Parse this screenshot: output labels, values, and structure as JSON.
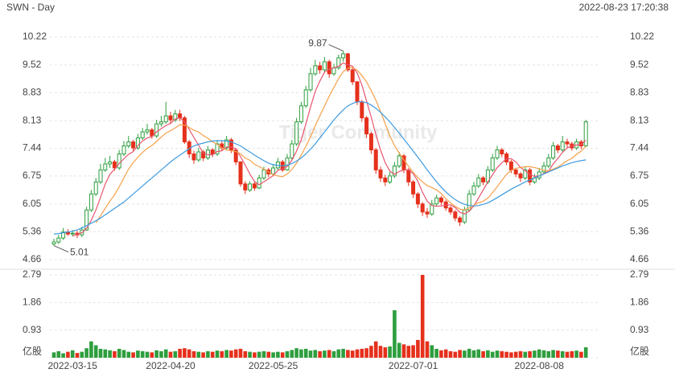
{
  "chart_data": {
    "type": "candlestick",
    "title": "SWN - Day",
    "subtitle": "2022-08-23 17:20:38",
    "watermark": "Tiger Community",
    "up_color": "#2e9e3e",
    "down_color": "#e5301c",
    "grid": true,
    "categories": [
      null,
      null,
      null,
      null,
      "2022-03-15",
      null,
      null,
      null,
      null,
      null,
      null,
      null,
      null,
      null,
      null,
      null,
      null,
      null,
      null,
      null,
      null,
      null,
      null,
      null,
      null,
      "2022-04-20",
      null,
      null,
      null,
      null,
      null,
      null,
      null,
      null,
      null,
      null,
      null,
      null,
      null,
      null,
      null,
      null,
      null,
      null,
      null,
      null,
      null,
      "2022-05-25",
      null,
      null,
      null,
      null,
      null,
      null,
      null,
      null,
      null,
      null,
      null,
      null,
      null,
      null,
      null,
      null,
      null,
      null,
      null,
      null,
      null,
      null,
      null,
      null,
      null,
      null,
      null,
      null,
      null,
      "2022-07-01",
      null,
      null,
      null,
      null,
      null,
      null,
      null,
      null,
      null,
      null,
      null,
      null,
      null,
      null,
      null,
      null,
      null,
      null,
      null,
      null,
      null,
      null,
      null,
      null,
      null,
      null,
      "2022-08-08",
      null,
      null,
      null,
      null,
      null,
      null,
      null,
      null,
      null,
      null
    ],
    "open": [
      5.05,
      5.1,
      5.2,
      5.35,
      5.3,
      5.32,
      5.28,
      5.4,
      5.9,
      6.3,
      6.6,
      6.9,
      7.05,
      7.1,
      6.95,
      7.3,
      7.5,
      7.6,
      7.45,
      7.7,
      7.85,
      7.9,
      7.75,
      8.05,
      8.1,
      8.25,
      8.15,
      8.3,
      8.2,
      7.6,
      7.3,
      7.15,
      7.35,
      7.2,
      7.4,
      7.3,
      7.55,
      7.45,
      7.65,
      7.4,
      7.1,
      6.55,
      6.4,
      6.55,
      6.45,
      6.7,
      6.9,
      6.8,
      6.95,
      7.1,
      6.9,
      7.2,
      7.55,
      8.1,
      8.5,
      8.9,
      9.3,
      9.5,
      9.4,
      9.6,
      9.3,
      9.45,
      9.7,
      9.8,
      9.4,
      9.1,
      8.6,
      8.2,
      7.8,
      7.4,
      6.9,
      6.7,
      6.6,
      6.75,
      7.0,
      7.25,
      6.9,
      6.6,
      6.3,
      6.05,
      5.85,
      5.8,
      6.05,
      6.2,
      6.1,
      5.95,
      5.85,
      5.7,
      5.6,
      5.9,
      6.3,
      6.5,
      6.7,
      6.6,
      6.9,
      7.2,
      7.4,
      7.3,
      7.1,
      6.9,
      6.8,
      6.7,
      6.9,
      6.6,
      6.7,
      6.85,
      7.0,
      7.2,
      7.5,
      7.4,
      7.6,
      7.55,
      7.45,
      7.6,
      7.5
    ],
    "high": [
      5.18,
      5.28,
      5.45,
      5.42,
      5.4,
      5.38,
      5.48,
      5.98,
      6.4,
      6.7,
      7.05,
      7.2,
      7.25,
      7.15,
      7.4,
      7.62,
      7.75,
      7.65,
      7.8,
      7.95,
      8.05,
      7.95,
      8.15,
      8.25,
      8.6,
      8.35,
      8.4,
      8.4,
      8.25,
      7.65,
      7.38,
      7.45,
      7.4,
      7.5,
      7.45,
      7.65,
      7.62,
      7.75,
      7.7,
      7.45,
      7.12,
      6.62,
      6.62,
      6.6,
      6.78,
      6.98,
      6.95,
      7.05,
      7.2,
      7.15,
      7.3,
      7.65,
      8.2,
      8.6,
      9.0,
      9.45,
      9.65,
      9.6,
      9.72,
      9.65,
      9.55,
      9.78,
      9.87,
      9.82,
      9.45,
      9.12,
      8.65,
      8.25,
      7.85,
      7.45,
      6.98,
      6.78,
      6.85,
      7.1,
      7.35,
      7.3,
      6.95,
      6.65,
      6.35,
      6.1,
      5.95,
      6.15,
      6.28,
      6.25,
      6.15,
      6.0,
      5.9,
      5.75,
      5.98,
      6.4,
      6.6,
      6.8,
      6.75,
      7.0,
      7.3,
      7.5,
      7.45,
      7.35,
      7.15,
      6.95,
      6.85,
      6.98,
      6.95,
      6.8,
      6.95,
      7.1,
      7.3,
      7.6,
      7.55,
      7.75,
      7.68,
      7.6,
      7.68,
      7.65,
      8.15
    ],
    "low": [
      5.01,
      5.05,
      5.15,
      5.25,
      5.24,
      5.2,
      5.22,
      5.38,
      5.85,
      6.25,
      6.55,
      6.85,
      6.95,
      6.88,
      6.9,
      7.25,
      7.45,
      7.38,
      7.4,
      7.65,
      7.78,
      7.68,
      7.7,
      7.98,
      8.05,
      8.05,
      8.1,
      8.12,
      7.55,
      7.2,
      7.05,
      7.1,
      7.12,
      7.15,
      7.22,
      7.25,
      7.38,
      7.4,
      7.32,
      7.02,
      6.48,
      6.3,
      6.35,
      6.38,
      6.42,
      6.65,
      6.72,
      6.75,
      6.9,
      6.85,
      6.88,
      7.15,
      7.5,
      8.05,
      8.45,
      8.85,
      9.25,
      9.3,
      9.35,
      9.2,
      9.25,
      9.4,
      9.6,
      9.35,
      9.02,
      8.52,
      8.1,
      7.7,
      7.3,
      6.8,
      6.6,
      6.5,
      6.55,
      6.7,
      6.95,
      6.82,
      6.5,
      6.2,
      5.95,
      5.75,
      5.7,
      5.75,
      6.0,
      6.02,
      5.88,
      5.78,
      5.62,
      5.5,
      5.55,
      5.85,
      6.25,
      6.45,
      6.52,
      6.55,
      6.85,
      7.15,
      7.22,
      7.02,
      6.82,
      6.72,
      6.6,
      6.65,
      6.52,
      6.55,
      6.65,
      6.8,
      6.95,
      7.15,
      7.32,
      7.35,
      7.45,
      7.38,
      7.4,
      7.42,
      7.48
    ],
    "close": [
      5.1,
      5.2,
      5.35,
      5.3,
      5.32,
      5.28,
      5.4,
      5.9,
      6.3,
      6.6,
      6.9,
      7.05,
      7.1,
      6.95,
      7.3,
      7.5,
      7.6,
      7.45,
      7.7,
      7.85,
      7.9,
      7.75,
      8.05,
      8.1,
      8.25,
      8.15,
      8.3,
      8.2,
      7.6,
      7.3,
      7.15,
      7.35,
      7.2,
      7.4,
      7.3,
      7.55,
      7.45,
      7.65,
      7.4,
      7.1,
      6.55,
      6.4,
      6.55,
      6.45,
      6.7,
      6.9,
      6.8,
      6.95,
      7.1,
      6.9,
      7.2,
      7.55,
      8.1,
      8.5,
      8.9,
      9.3,
      9.5,
      9.4,
      9.6,
      9.3,
      9.45,
      9.7,
      9.8,
      9.4,
      9.1,
      8.6,
      8.2,
      7.8,
      7.4,
      6.9,
      6.7,
      6.6,
      6.75,
      7.0,
      7.25,
      6.9,
      6.6,
      6.3,
      6.05,
      5.85,
      5.8,
      6.05,
      6.2,
      6.1,
      5.95,
      5.85,
      5.7,
      5.6,
      5.9,
      6.3,
      6.5,
      6.7,
      6.6,
      6.9,
      7.2,
      7.4,
      7.3,
      7.1,
      6.9,
      6.8,
      6.7,
      6.9,
      6.6,
      6.7,
      6.85,
      7.0,
      7.2,
      7.5,
      7.4,
      7.6,
      7.55,
      7.45,
      7.6,
      7.5,
      8.1
    ],
    "ylim": [
      4.66,
      10.22
    ],
    "yticks": [
      4.66,
      5.36,
      6.05,
      6.75,
      7.44,
      8.13,
      8.83,
      9.52,
      10.22
    ],
    "ma": [
      {
        "color": "#e8556e",
        "values": [
          null,
          null,
          null,
          null,
          5.25,
          5.29,
          5.33,
          5.44,
          5.64,
          5.9,
          6.22,
          6.55,
          6.79,
          6.92,
          7.06,
          7.18,
          7.29,
          7.36,
          7.51,
          7.62,
          7.7,
          7.73,
          7.85,
          7.93,
          8.01,
          8.06,
          8.17,
          8.2,
          8.1,
          7.91,
          7.71,
          7.52,
          7.32,
          7.28,
          7.28,
          7.36,
          7.38,
          7.47,
          7.47,
          7.43,
          7.23,
          7.02,
          6.8,
          6.61,
          6.53,
          6.6,
          6.68,
          6.76,
          6.89,
          6.93,
          6.99,
          7.14,
          7.37,
          7.65,
          8.05,
          8.47,
          8.86,
          9.12,
          9.34,
          9.42,
          9.45,
          9.49,
          9.57,
          9.53,
          9.49,
          9.32,
          9.02,
          8.62,
          8.22,
          7.78,
          7.4,
          7.08,
          6.87,
          6.79,
          6.86,
          6.9,
          6.9,
          6.81,
          6.62,
          6.34,
          6.12,
          6.01,
          5.99,
          6.0,
          6.02,
          6.03,
          5.96,
          5.84,
          5.8,
          5.87,
          6.0,
          6.2,
          6.4,
          6.6,
          6.78,
          6.96,
          7.08,
          7.18,
          7.18,
          7.1,
          6.96,
          6.88,
          6.78,
          6.74,
          6.75,
          6.81,
          6.87,
          7.05,
          7.19,
          7.34,
          7.45,
          7.5,
          7.52,
          7.54,
          7.64
        ]
      },
      {
        "color": "#f5a04a",
        "values": [
          null,
          null,
          null,
          null,
          null,
          null,
          null,
          null,
          null,
          5.58,
          5.76,
          5.94,
          6.12,
          6.28,
          6.48,
          6.7,
          6.92,
          7.08,
          7.22,
          7.34,
          7.44,
          7.51,
          7.61,
          7.72,
          7.82,
          7.88,
          7.95,
          8.03,
          8.02,
          7.96,
          7.89,
          7.85,
          7.76,
          7.69,
          7.6,
          7.54,
          7.45,
          7.4,
          7.38,
          7.36,
          7.3,
          7.2,
          7.14,
          7.04,
          6.98,
          6.92,
          6.85,
          6.78,
          6.75,
          6.73,
          6.8,
          6.91,
          7.07,
          7.27,
          7.49,
          7.73,
          8.0,
          8.25,
          8.5,
          8.74,
          8.96,
          9.18,
          9.35,
          9.44,
          9.46,
          9.39,
          9.26,
          9.1,
          8.88,
          8.64,
          8.36,
          8.05,
          7.75,
          7.51,
          7.32,
          7.15,
          6.99,
          6.84,
          6.71,
          6.6,
          6.51,
          6.46,
          6.4,
          6.31,
          6.18,
          6.08,
          5.99,
          5.92,
          5.9,
          5.95,
          6.02,
          6.08,
          6.12,
          6.2,
          6.33,
          6.48,
          6.64,
          6.79,
          6.89,
          6.94,
          6.96,
          6.98,
          6.98,
          6.96,
          6.93,
          6.89,
          6.88,
          6.92,
          6.97,
          7.05,
          7.13,
          7.19,
          7.29,
          7.37,
          7.49
        ]
      },
      {
        "color": "#3d9be0",
        "values": [
          5.3,
          5.31,
          5.33,
          5.35,
          5.37,
          5.4,
          5.45,
          5.51,
          5.57,
          5.63,
          5.7,
          5.78,
          5.86,
          5.94,
          6.02,
          6.1,
          6.2,
          6.3,
          6.4,
          6.5,
          6.6,
          6.7,
          6.8,
          6.9,
          7.0,
          7.1,
          7.19,
          7.27,
          7.35,
          7.43,
          7.5,
          7.54,
          7.57,
          7.6,
          7.62,
          7.63,
          7.63,
          7.62,
          7.6,
          7.55,
          7.5,
          7.42,
          7.35,
          7.27,
          7.2,
          7.13,
          7.07,
          7.03,
          7.01,
          7.0,
          7.02,
          7.06,
          7.12,
          7.2,
          7.3,
          7.42,
          7.55,
          7.7,
          7.85,
          8.0,
          8.15,
          8.28,
          8.4,
          8.5,
          8.56,
          8.6,
          8.6,
          8.58,
          8.52,
          8.44,
          8.34,
          8.22,
          8.1,
          7.96,
          7.82,
          7.67,
          7.52,
          7.37,
          7.22,
          7.06,
          6.9,
          6.75,
          6.6,
          6.47,
          6.35,
          6.25,
          6.16,
          6.09,
          6.04,
          6.01,
          6.0,
          6.01,
          6.04,
          6.08,
          6.14,
          6.21,
          6.28,
          6.35,
          6.42,
          6.48,
          6.54,
          6.6,
          6.65,
          6.7,
          6.75,
          6.8,
          6.85,
          6.9,
          6.95,
          7.0,
          7.04,
          7.08,
          7.11,
          7.13,
          7.15
        ]
      }
    ],
    "annotations": [
      {
        "text": "9.87",
        "value": 9.87
      },
      {
        "text": "5.01",
        "value": 5.01
      }
    ],
    "volume": {
      "values": [
        0.18,
        0.22,
        0.15,
        0.2,
        0.25,
        0.16,
        0.2,
        0.32,
        0.55,
        0.42,
        0.3,
        0.28,
        0.25,
        0.22,
        0.3,
        0.26,
        0.2,
        0.18,
        0.24,
        0.22,
        0.2,
        0.18,
        0.25,
        0.22,
        0.28,
        0.2,
        0.22,
        0.3,
        0.32,
        0.28,
        0.22,
        0.2,
        0.18,
        0.22,
        0.2,
        0.24,
        0.22,
        0.26,
        0.24,
        0.28,
        0.3,
        0.22,
        0.2,
        0.18,
        0.2,
        0.22,
        0.2,
        0.18,
        0.2,
        0.18,
        0.22,
        0.26,
        0.32,
        0.28,
        0.3,
        0.24,
        0.26,
        0.22,
        0.24,
        0.26,
        0.22,
        0.28,
        0.3,
        0.26,
        0.24,
        0.28,
        0.3,
        0.32,
        0.4,
        0.55,
        0.4,
        0.35,
        0.38,
        1.6,
        0.5,
        0.45,
        0.4,
        0.42,
        0.6,
        2.79,
        0.55,
        0.42,
        0.3,
        0.25,
        0.28,
        0.22,
        0.2,
        0.26,
        0.24,
        0.3,
        0.25,
        0.28,
        0.22,
        0.25,
        0.2,
        0.24,
        0.22,
        0.2,
        0.18,
        0.2,
        0.22,
        0.2,
        0.22,
        0.24,
        0.28,
        0.25,
        0.22,
        0.26,
        0.24,
        0.22,
        0.2,
        0.22,
        0.24,
        0.2,
        0.35
      ],
      "ylim": [
        0,
        2.79
      ],
      "yticks": [
        {
          "value": 0,
          "label": "亿股"
        },
        0.93,
        1.86,
        2.79
      ]
    }
  }
}
